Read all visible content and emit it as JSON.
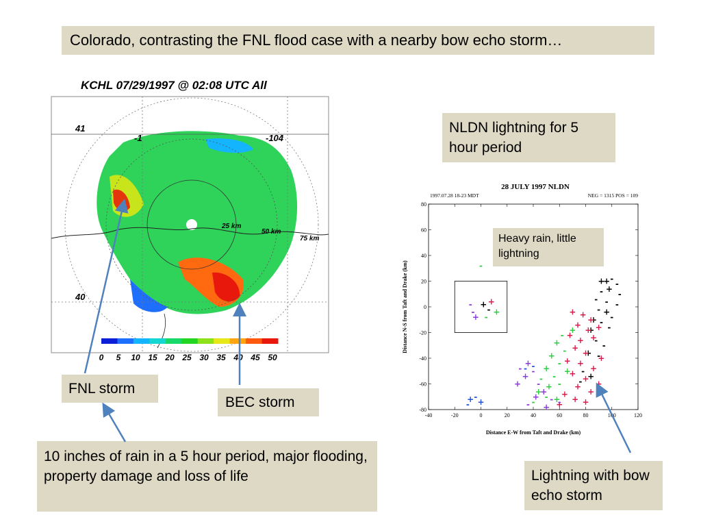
{
  "slide": {
    "title": "Colorado, contrasting the FNL flood case with a nearby bow echo storm…",
    "nldn_caption": "NLDN lightning for 5 hour period",
    "fnl_label": "FNL storm",
    "bec_label": "BEC storm",
    "rain_note": "10 inches of rain in a 5 hour period, major flooding, property damage and loss of life",
    "heavy_rain_note": "Heavy rain, little lightning",
    "lightning_note": "Lightning with bow echo storm"
  },
  "radar": {
    "title": "KCHL 07/29/1997 @ 02:08 UTC  All",
    "lat_labels": [
      "41",
      "40"
    ],
    "lon_labels": [
      "-104",
      "-1"
    ],
    "range_labels": [
      "25 km",
      "50 km",
      "75 km"
    ],
    "colorbar_ticks": [
      "0",
      "5",
      "10",
      "15",
      "20",
      "25",
      "30",
      "35",
      "40",
      "45",
      "50"
    ],
    "colorbar_colors": [
      "#0a1fd6",
      "#1f6fff",
      "#14b4ff",
      "#13d7d0",
      "#18d86a",
      "#24d624",
      "#8ee21c",
      "#e6e817",
      "#ffa512",
      "#ff5a0e",
      "#e8180c"
    ],
    "field_color": "#2fd35a"
  },
  "chart_data": {
    "type": "scatter",
    "title": "28 JULY 1997 NLDN",
    "subtitle_left": "1997.07.28  18-23 MDT",
    "subtitle_right": "NEG = 1315   POS = 109",
    "xlabel": "Distance E-W from Taft and Drake (km)",
    "ylabel": "Distance N-S from Taft and Drake (km)",
    "xlim": [
      -40,
      120
    ],
    "ylim": [
      -80,
      80
    ],
    "xticks": [
      -40,
      -20,
      0,
      20,
      40,
      60,
      80,
      100,
      120
    ],
    "yticks": [
      -80,
      -60,
      -40,
      -20,
      0,
      20,
      40,
      60,
      80
    ],
    "inset_box": {
      "x": [
        -20,
        20
      ],
      "y": [
        -20,
        20
      ]
    },
    "series": [
      {
        "color": "#000000",
        "points": [
          [
            92,
            20,
            "+"
          ],
          [
            96,
            20,
            "+"
          ],
          [
            100,
            22,
            "-"
          ],
          [
            104,
            18,
            "-"
          ],
          [
            98,
            14,
            "+"
          ],
          [
            92,
            12,
            "-"
          ],
          [
            106,
            10,
            "-"
          ],
          [
            88,
            6,
            "-"
          ],
          [
            96,
            4,
            "-"
          ],
          [
            104,
            2,
            "-"
          ],
          [
            90,
            -2,
            "-"
          ],
          [
            96,
            -4,
            "+"
          ],
          [
            100,
            -8,
            "-"
          ],
          [
            86,
            -10,
            "+"
          ],
          [
            92,
            -12,
            "-"
          ],
          [
            98,
            -16,
            "-"
          ],
          [
            84,
            -18,
            "+"
          ],
          [
            88,
            -26,
            "-"
          ],
          [
            94,
            -30,
            "-"
          ],
          [
            82,
            -36,
            "+"
          ],
          [
            90,
            -38,
            "-"
          ],
          [
            78,
            -50,
            "-"
          ],
          [
            84,
            -54,
            "+"
          ],
          [
            76,
            -58,
            "-"
          ],
          [
            2,
            2,
            "+"
          ],
          [
            6,
            -2,
            "-"
          ]
        ]
      },
      {
        "color": "#d81b4a",
        "points": [
          [
            70,
            -4,
            "+"
          ],
          [
            78,
            -6,
            "+"
          ],
          [
            84,
            -10,
            "+"
          ],
          [
            74,
            -14,
            "+"
          ],
          [
            82,
            -18,
            "+"
          ],
          [
            90,
            -16,
            "+"
          ],
          [
            68,
            -22,
            "+"
          ],
          [
            76,
            -26,
            "+"
          ],
          [
            86,
            -24,
            "+"
          ],
          [
            72,
            -32,
            "+"
          ],
          [
            80,
            -36,
            "+"
          ],
          [
            92,
            -40,
            "+"
          ],
          [
            66,
            -42,
            "+"
          ],
          [
            76,
            -44,
            "+"
          ],
          [
            86,
            -48,
            "+"
          ],
          [
            70,
            -52,
            "+"
          ],
          [
            80,
            -56,
            "+"
          ],
          [
            90,
            -60,
            "+"
          ],
          [
            74,
            -62,
            "+"
          ],
          [
            84,
            -66,
            "+"
          ],
          [
            64,
            -68,
            "+"
          ],
          [
            72,
            -72,
            "+"
          ],
          [
            80,
            -74,
            "+"
          ],
          [
            60,
            -76,
            "+"
          ],
          [
            8,
            4,
            "+"
          ]
        ]
      },
      {
        "color": "#2ecc40",
        "points": [
          [
            0,
            32,
            "-"
          ],
          [
            70,
            -18,
            "+"
          ],
          [
            62,
            -22,
            "-"
          ],
          [
            58,
            -28,
            "+"
          ],
          [
            64,
            -34,
            "-"
          ],
          [
            54,
            -38,
            "+"
          ],
          [
            60,
            -44,
            "-"
          ],
          [
            50,
            -48,
            "+"
          ],
          [
            56,
            -54,
            "-"
          ],
          [
            66,
            -50,
            "+"
          ],
          [
            46,
            -56,
            "-"
          ],
          [
            52,
            -62,
            "+"
          ],
          [
            60,
            -60,
            "-"
          ],
          [
            44,
            -66,
            "+"
          ],
          [
            50,
            -70,
            "-"
          ],
          [
            58,
            -72,
            "+"
          ],
          [
            40,
            -74,
            "-"
          ],
          [
            12,
            -4,
            "+"
          ],
          [
            4,
            -8,
            "-"
          ]
        ]
      },
      {
        "color": "#8a3ad8",
        "points": [
          [
            36,
            -44,
            "+"
          ],
          [
            30,
            -48,
            "-"
          ],
          [
            40,
            -50,
            "-"
          ],
          [
            34,
            -54,
            "+"
          ],
          [
            44,
            -60,
            "-"
          ],
          [
            48,
            -66,
            "+"
          ],
          [
            54,
            -72,
            "-"
          ],
          [
            42,
            -70,
            "+"
          ],
          [
            36,
            -76,
            "-"
          ],
          [
            50,
            -78,
            "+"
          ],
          [
            28,
            -60,
            "+"
          ],
          [
            -6,
            -4,
            "-"
          ],
          [
            -4,
            -8,
            "+"
          ],
          [
            -8,
            2,
            "-"
          ],
          [
            60,
            -74,
            "-"
          ]
        ]
      },
      {
        "color": "#1f4fd8",
        "points": [
          [
            -8,
            -72,
            "+"
          ],
          [
            -4,
            -70,
            "-"
          ],
          [
            0,
            -74,
            "+"
          ],
          [
            -10,
            -76,
            "-"
          ],
          [
            34,
            -48,
            "-"
          ],
          [
            40,
            -46,
            "-"
          ]
        ]
      }
    ]
  }
}
